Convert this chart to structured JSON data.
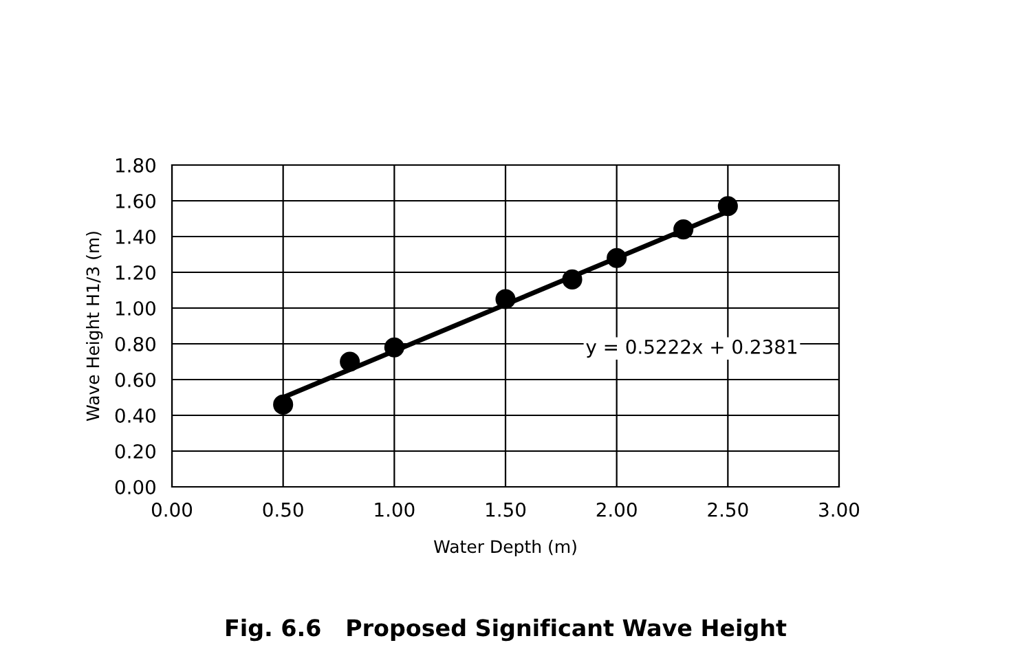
{
  "chart_data": {
    "type": "scatter",
    "title": "Fig. 6.6   Proposed Significant Wave Height",
    "xlabel": "Water Depth (m)",
    "ylabel": "Wave Height H1/3 (m)",
    "series": [
      {
        "color": "#000000",
        "marker": "circle",
        "x": [
          0.5,
          0.8,
          1.0,
          1.5,
          1.8,
          2.0,
          2.3,
          2.5
        ],
        "values": [
          0.46,
          0.7,
          0.78,
          1.05,
          1.16,
          1.28,
          1.44,
          1.57
        ]
      },
      {
        "type": "line",
        "marker": "none",
        "color": "#000000",
        "x": [
          0.5,
          2.5
        ],
        "values": [
          0.5,
          1.54
        ]
      }
    ],
    "annotations": [
      "y = 0.5222x + 0.2381"
    ],
    "xlim": [
      0,
      3
    ],
    "xticks": [
      {
        "value": 0,
        "label": "0.00"
      },
      {
        "value": 0.5,
        "label": "0.50"
      },
      {
        "value": 1,
        "label": "1.00"
      },
      {
        "value": 1.5,
        "label": "1.50"
      },
      {
        "value": 2,
        "label": "2.00"
      },
      {
        "value": 2.5,
        "label": "2.50"
      },
      {
        "value": 3,
        "label": "3.00"
      }
    ],
    "ylim": [
      0,
      1.8
    ],
    "yticks": [
      {
        "value": 0,
        "label": "0.00"
      },
      {
        "value": 0.2,
        "label": "0.20"
      },
      {
        "value": 0.4,
        "label": "0.40"
      },
      {
        "value": 0.6,
        "label": "0.60"
      },
      {
        "value": 0.8,
        "label": "0.80"
      },
      {
        "value": 1.0,
        "label": "1.00"
      },
      {
        "value": 1.2,
        "label": "1.20"
      },
      {
        "value": 1.4,
        "label": "1.40"
      },
      {
        "value": 1.6,
        "label": "1.60"
      },
      {
        "value": 1.8,
        "label": "1.80"
      }
    ],
    "grid": true,
    "line_style": "solid"
  }
}
